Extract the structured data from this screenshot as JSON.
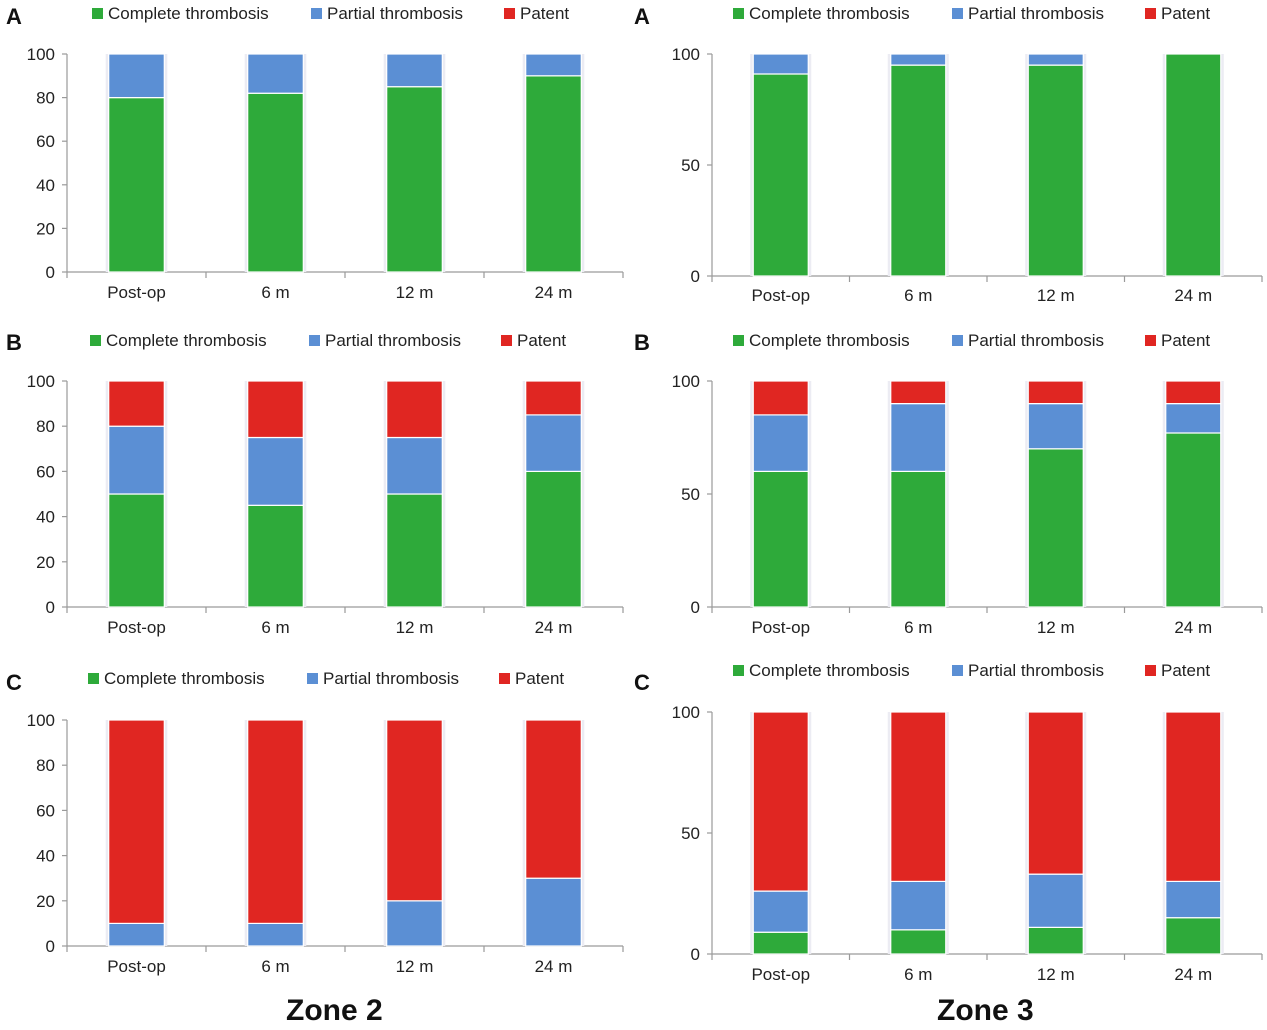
{
  "colors": {
    "complete": "#2eaa3a",
    "partial": "#5b8fd4",
    "patent": "#e02622"
  },
  "zones": [
    "Zone 2",
    "Zone 3"
  ],
  "chart_data": [
    {
      "type": "bar",
      "stacked": true,
      "panel_label": "A",
      "categories": [
        "Post-op",
        "6 m",
        "12 m",
        "24 m"
      ],
      "ylim": [
        0,
        100
      ],
      "yticks": [
        0,
        20,
        40,
        60,
        80,
        100
      ],
      "legend_position": "top",
      "series": [
        {
          "name": "Complete thrombosis",
          "values": [
            80,
            82,
            85,
            90
          ]
        },
        {
          "name": "Partial thrombosis",
          "values": [
            20,
            18,
            15,
            10
          ]
        },
        {
          "name": "Patent",
          "values": [
            0,
            0,
            0,
            0
          ]
        }
      ]
    },
    {
      "type": "bar",
      "stacked": true,
      "panel_label": "A",
      "categories": [
        "Post-op",
        "6 m",
        "12 m",
        "24 m"
      ],
      "ylim": [
        0,
        100
      ],
      "yticks": [
        0,
        50,
        100
      ],
      "legend_position": "top",
      "series": [
        {
          "name": "Complete thrombosis",
          "values": [
            91,
            95,
            95,
            100
          ]
        },
        {
          "name": "Partial thrombosis",
          "values": [
            9,
            5,
            5,
            0
          ]
        },
        {
          "name": "Patent",
          "values": [
            0,
            0,
            0,
            0
          ]
        }
      ]
    },
    {
      "type": "bar",
      "stacked": true,
      "panel_label": "B",
      "categories": [
        "Post-op",
        "6 m",
        "12 m",
        "24 m"
      ],
      "ylim": [
        0,
        100
      ],
      "yticks": [
        0,
        20,
        40,
        60,
        80,
        100
      ],
      "legend_position": "top",
      "series": [
        {
          "name": "Complete thrombosis",
          "values": [
            50,
            45,
            50,
            60
          ]
        },
        {
          "name": "Partial thrombosis",
          "values": [
            30,
            30,
            25,
            25
          ]
        },
        {
          "name": "Patent",
          "values": [
            20,
            25,
            25,
            15
          ]
        }
      ]
    },
    {
      "type": "bar",
      "stacked": true,
      "panel_label": "B",
      "categories": [
        "Post-op",
        "6 m",
        "12 m",
        "24 m"
      ],
      "ylim": [
        0,
        100
      ],
      "yticks": [
        0,
        50,
        100
      ],
      "legend_position": "top",
      "series": [
        {
          "name": "Complete thrombosis",
          "values": [
            60,
            60,
            70,
            77
          ]
        },
        {
          "name": "Partial thrombosis",
          "values": [
            25,
            30,
            20,
            13
          ]
        },
        {
          "name": "Patent",
          "values": [
            15,
            10,
            10,
            10
          ]
        }
      ]
    },
    {
      "type": "bar",
      "stacked": true,
      "panel_label": "C",
      "categories": [
        "Post-op",
        "6 m",
        "12 m",
        "24 m"
      ],
      "ylim": [
        0,
        100
      ],
      "yticks": [
        0,
        20,
        40,
        60,
        80,
        100
      ],
      "legend_position": "top",
      "series": [
        {
          "name": "Complete thrombosis",
          "values": [
            0,
            0,
            0,
            0
          ]
        },
        {
          "name": "Partial thrombosis",
          "values": [
            10,
            10,
            20,
            30
          ]
        },
        {
          "name": "Patent",
          "values": [
            90,
            90,
            80,
            70
          ]
        }
      ]
    },
    {
      "type": "bar",
      "stacked": true,
      "panel_label": "C",
      "categories": [
        "Post-op",
        "6 m",
        "12 m",
        "24 m"
      ],
      "ylim": [
        0,
        100
      ],
      "yticks": [
        0,
        50,
        100
      ],
      "legend_position": "top",
      "series": [
        {
          "name": "Complete thrombosis",
          "values": [
            9,
            10,
            11,
            15
          ]
        },
        {
          "name": "Partial thrombosis",
          "values": [
            17,
            20,
            22,
            15
          ]
        },
        {
          "name": "Patent",
          "values": [
            74,
            70,
            67,
            70
          ]
        }
      ]
    }
  ]
}
